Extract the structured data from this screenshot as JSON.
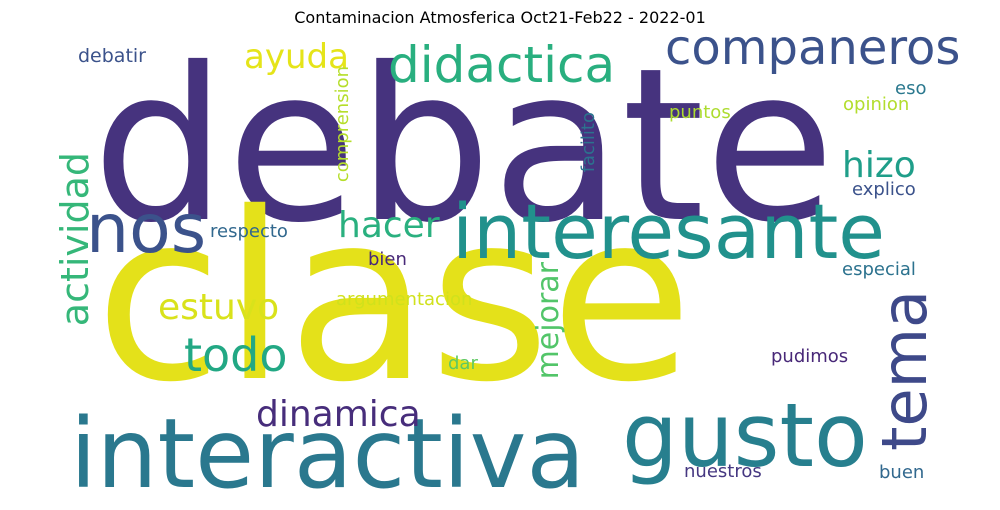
{
  "title": "Contaminacion Atmosferica Oct21-Feb22 - 2022-01",
  "words": [
    {
      "text": "debate",
      "color": "#46337e"
    },
    {
      "text": "clase",
      "color": "#e4e11a"
    },
    {
      "text": "interactiva",
      "color": "#2a788e"
    },
    {
      "text": "gusto",
      "color": "#277f8e"
    },
    {
      "text": "interesante",
      "color": "#21918c"
    },
    {
      "text": "companeros",
      "color": "#3b528b"
    },
    {
      "text": "didactica",
      "color": "#29af7f"
    },
    {
      "text": "nos",
      "color": "#3b528b"
    },
    {
      "text": "tema",
      "color": "#3e4989"
    },
    {
      "text": "todo",
      "color": "#22a884"
    },
    {
      "text": "actividad",
      "color": "#35b779"
    },
    {
      "text": "dinamica",
      "color": "#472d7b"
    },
    {
      "text": "hizo",
      "color": "#1f9e89"
    },
    {
      "text": "hacer",
      "color": "#2ab07f"
    },
    {
      "text": "estuvo",
      "color": "#d9e21b"
    },
    {
      "text": "ayuda",
      "color": "#e5e419"
    },
    {
      "text": "mejorar",
      "color": "#52c569"
    },
    {
      "text": "debatir",
      "color": "#3b528b"
    },
    {
      "text": "respecto",
      "color": "#31688e"
    },
    {
      "text": "bien",
      "color": "#482878"
    },
    {
      "text": "argumentacion",
      "color": "#d0e11c"
    },
    {
      "text": "comprension",
      "color": "#b5de2b"
    },
    {
      "text": "facilito",
      "color": "#2c728e"
    },
    {
      "text": "puntos",
      "color": "#addc30"
    },
    {
      "text": "eso",
      "color": "#2a788e"
    },
    {
      "text": "opinion",
      "color": "#b2dd2d"
    },
    {
      "text": "explico",
      "color": "#3b528b"
    },
    {
      "text": "especial",
      "color": "#2c728e"
    },
    {
      "text": "dar",
      "color": "#5ec962"
    },
    {
      "text": "pudimos",
      "color": "#482878"
    },
    {
      "text": "nuestros",
      "color": "#453781"
    },
    {
      "text": "buen",
      "color": "#31688e"
    }
  ]
}
